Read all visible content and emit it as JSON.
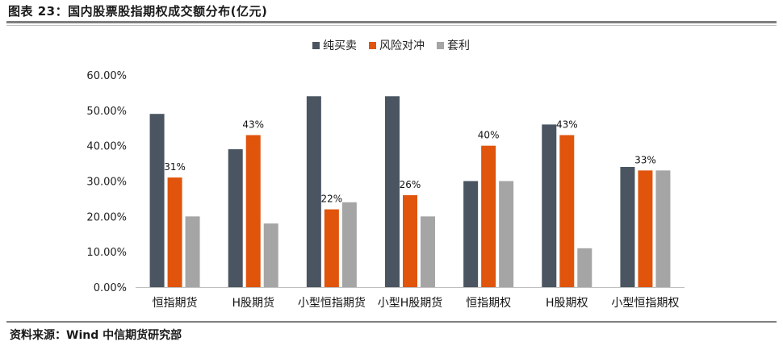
{
  "figure_title": "图表 23：国内股票股指期权成交额分布(亿元)",
  "source": "资料来源：Wind 中信期货研究部",
  "chart_data": {
    "type": "bar",
    "title": "",
    "xlabel": "",
    "ylabel": "",
    "ylim": [
      0,
      60
    ],
    "yticks": [
      "0.00%",
      "10.00%",
      "20.00%",
      "30.00%",
      "40.00%",
      "50.00%",
      "60.00%"
    ],
    "legend_position": "top-center",
    "grid": false,
    "categories": [
      "恒指期货",
      "H股期货",
      "小型恒指期货",
      "小型H股期货",
      "恒指期权",
      "H股期权",
      "小型恒指期权"
    ],
    "series": [
      {
        "name": "纯买卖",
        "color": "#4a5561",
        "values": [
          49,
          39,
          54,
          54,
          30,
          46,
          34
        ]
      },
      {
        "name": "风险对冲",
        "color": "#e0540c",
        "values": [
          31,
          43,
          22,
          26,
          40,
          43,
          33
        ]
      },
      {
        "name": "套利",
        "color": "#a5a5a5",
        "values": [
          20,
          18,
          24,
          20,
          30,
          11,
          33
        ]
      }
    ],
    "data_labels": [
      "31%",
      "43%",
      "22%",
      "26%",
      "40%",
      "43%",
      "33%"
    ]
  }
}
